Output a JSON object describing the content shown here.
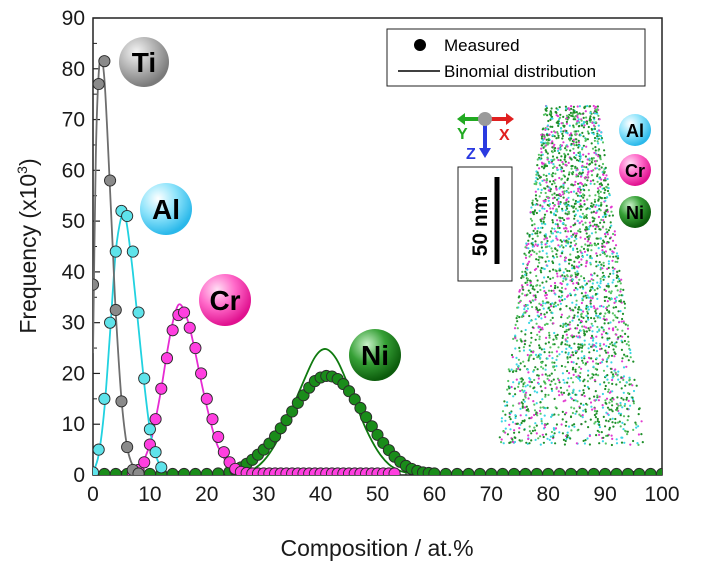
{
  "chart_data": {
    "type": "scatter",
    "xlabel": "Composition / at.%",
    "ylabel_main": "Frequency (x10",
    "ylabel_sup": "3",
    "ylabel_close": ")",
    "xlim": [
      0,
      100
    ],
    "ylim": [
      0,
      90
    ],
    "x_ticks": [
      "0",
      "10",
      "20",
      "30",
      "40",
      "50",
      "60",
      "70",
      "80",
      "90",
      "100"
    ],
    "y_ticks": [
      "0",
      "10",
      "20",
      "30",
      "40",
      "50",
      "60",
      "70",
      "80",
      "90"
    ],
    "legend": {
      "position": "top-right",
      "measured_label": "Measured",
      "binomial_label": "Binomial distribution"
    },
    "series": [
      {
        "name": "Ti",
        "marker_color": "#8a8a8a",
        "line_color": "#6e6e6e",
        "measured": {
          "x": [
            0,
            1,
            2,
            3,
            4,
            5,
            6,
            7,
            8
          ],
          "y": [
            37.5,
            77,
            81.5,
            58,
            32.5,
            14.5,
            5.5,
            1,
            0.3
          ]
        },
        "binomial": {
          "x": [
            0,
            0.5,
            1,
            1.5,
            2,
            2.5,
            3,
            3.5,
            4,
            5,
            6,
            7,
            8,
            9,
            10,
            12
          ],
          "y": [
            24,
            63,
            79,
            82,
            78,
            68,
            56,
            44,
            32,
            15,
            5.5,
            1.8,
            0.5,
            0.2,
            0.1,
            0
          ]
        }
      },
      {
        "name": "Al",
        "marker_color": "#5ee3ea",
        "line_color": "#21d2e0",
        "measured": {
          "x": [
            0,
            1,
            2,
            3,
            4,
            5,
            6,
            7,
            8,
            9,
            10,
            11,
            12
          ],
          "y": [
            0.5,
            5,
            15,
            30,
            44,
            52,
            51,
            44,
            32,
            19,
            9,
            4.5,
            1.5
          ]
        },
        "binomial": {
          "x": [
            0,
            1,
            2,
            3,
            4,
            5,
            5.5,
            6,
            7,
            8,
            9,
            10,
            11,
            12,
            13,
            14,
            15
          ],
          "y": [
            0.5,
            4,
            13,
            28,
            44,
            51,
            51,
            49,
            40,
            29,
            18,
            9,
            4,
            1.5,
            0.5,
            0.2,
            0
          ]
        }
      },
      {
        "name": "Cr",
        "marker_color": "#ff3fe0",
        "line_color": "#e62bd2",
        "measured": {
          "x": [
            7,
            8,
            9,
            10,
            11,
            12,
            13,
            14,
            15,
            16,
            17,
            18,
            19,
            20,
            21,
            22,
            23,
            24,
            25,
            26,
            27,
            28,
            29,
            30,
            31,
            32,
            33,
            34,
            35,
            36,
            37,
            38,
            39,
            40,
            41,
            42,
            43,
            44,
            45,
            46,
            47,
            48,
            49,
            50,
            51,
            52,
            53
          ],
          "y": [
            0.3,
            1,
            2.5,
            6,
            11,
            17,
            23,
            28.5,
            31.5,
            32,
            29,
            25,
            20,
            15,
            11,
            7.5,
            4.5,
            2.5,
            1.2,
            0.6,
            0.4,
            0.3,
            0.3,
            0.3,
            0.3,
            0.3,
            0.3,
            0.3,
            0.3,
            0.3,
            0.3,
            0.3,
            0.3,
            0.3,
            0.3,
            0.3,
            0.3,
            0.3,
            0.3,
            0.3,
            0.3,
            0.3,
            0.3,
            0.3,
            0.3,
            0.3,
            0.3
          ]
        },
        "binomial": {
          "x": [
            6,
            8,
            10,
            11,
            12,
            13,
            14,
            15,
            16,
            17,
            18,
            19,
            20,
            21,
            22,
            24,
            26,
            28,
            30
          ],
          "y": [
            0,
            1,
            6,
            11,
            17,
            24,
            30,
            33.5,
            32.5,
            29,
            24,
            18.5,
            13.5,
            9,
            5.5,
            1.8,
            0.4,
            0.1,
            0
          ]
        }
      },
      {
        "name": "Ni",
        "marker_color": "#1a8c1a",
        "line_color": "#0f7a0f",
        "measured": {
          "x": [
            0,
            2,
            4,
            6,
            8,
            10,
            12,
            14,
            16,
            18,
            20,
            22,
            24,
            25,
            26,
            27,
            28,
            29,
            30,
            31,
            32,
            33,
            34,
            35,
            36,
            37,
            38,
            39,
            40,
            41,
            42,
            43,
            44,
            45,
            46,
            47,
            48,
            49,
            50,
            51,
            52,
            53,
            54,
            55,
            56,
            57,
            58,
            59,
            60,
            62,
            64,
            66,
            68,
            70,
            72,
            74,
            76,
            78,
            80,
            82,
            84,
            86,
            88,
            90,
            92,
            94,
            96,
            98,
            100
          ],
          "y": [
            0.2,
            0.2,
            0.2,
            0.2,
            0.2,
            0.2,
            0.2,
            0.2,
            0.2,
            0.2,
            0.2,
            0.3,
            0.6,
            1,
            1.5,
            2.2,
            3,
            4,
            5,
            6.2,
            7.6,
            9.2,
            10.8,
            12.5,
            14.2,
            15.7,
            17.2,
            18.5,
            19.2,
            19.5,
            19.4,
            18.9,
            17.9,
            16.5,
            14.9,
            13.2,
            11.4,
            9.6,
            7.9,
            6.3,
            4.9,
            3.6,
            2.6,
            1.8,
            1.2,
            0.8,
            0.5,
            0.4,
            0.3,
            0.2,
            0.2,
            0.2,
            0.2,
            0.2,
            0.2,
            0.2,
            0.2,
            0.2,
            0.2,
            0.2,
            0.2,
            0.2,
            0.2,
            0.2,
            0.2,
            0.2,
            0.2,
            0.2,
            0.2
          ]
        },
        "binomial": {
          "x": [
            26,
            28,
            30,
            32,
            34,
            36,
            38,
            39,
            40,
            41,
            42,
            43,
            44,
            46,
            48,
            50,
            52,
            54,
            56,
            58
          ],
          "y": [
            0.3,
            1,
            2.8,
            6,
            10.5,
            15.8,
            21,
            23.2,
            24.5,
            24.8,
            24,
            22.4,
            20,
            14.5,
            9,
            4.8,
            2.1,
            0.8,
            0.3,
            0.1
          ]
        }
      }
    ],
    "element_labels": [
      "Ti",
      "Al",
      "Cr",
      "Ni"
    ],
    "inset": {
      "axis_labels": {
        "y": "Y",
        "z": "Z",
        "x": "X"
      },
      "scale_bar": "50 nm",
      "atom_legend": [
        "Al",
        "Cr",
        "Ni"
      ]
    }
  }
}
